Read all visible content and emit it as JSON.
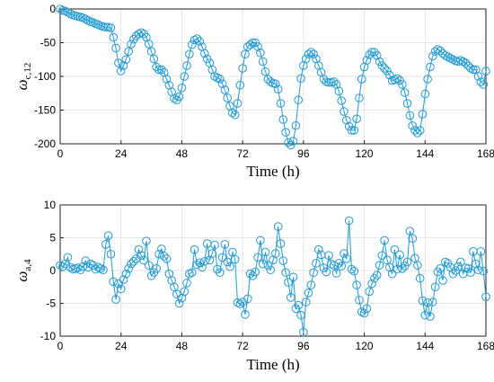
{
  "chart_data": [
    {
      "type": "line",
      "marker": "circle",
      "color": "#1f9ad6",
      "grid": true,
      "xlabel": "Time (h)",
      "ylabel_symbol": "ω",
      "ylabel_subscript": "c,12",
      "xlim": [
        0,
        168
      ],
      "ylim": [
        -200,
        0
      ],
      "xticks": [
        "0",
        "24",
        "48",
        "72",
        "96",
        "120",
        "144",
        "168"
      ],
      "yticks": [
        "0",
        "-50",
        "-100",
        "-150",
        "-200"
      ],
      "x": [
        0,
        1,
        2,
        3,
        4,
        5,
        6,
        7,
        8,
        9,
        10,
        11,
        12,
        13,
        14,
        15,
        16,
        17,
        18,
        19,
        20,
        21,
        22,
        23,
        24,
        25,
        26,
        27,
        28,
        29,
        30,
        31,
        32,
        33,
        34,
        35,
        36,
        37,
        38,
        39,
        40,
        41,
        42,
        43,
        44,
        45,
        46,
        47,
        48,
        49,
        50,
        51,
        52,
        53,
        54,
        55,
        56,
        57,
        58,
        59,
        60,
        61,
        62,
        63,
        64,
        65,
        66,
        67,
        68,
        69,
        70,
        71,
        72,
        73,
        74,
        75,
        76,
        77,
        78,
        79,
        80,
        81,
        82,
        83,
        84,
        85,
        86,
        87,
        88,
        89,
        90,
        91,
        92,
        93,
        94,
        95,
        96,
        97,
        98,
        99,
        100,
        101,
        102,
        103,
        104,
        105,
        106,
        107,
        108,
        109,
        110,
        111,
        112,
        113,
        114,
        115,
        116,
        117,
        118,
        119,
        120,
        121,
        122,
        123,
        124,
        125,
        126,
        127,
        128,
        129,
        130,
        131,
        132,
        133,
        134,
        135,
        136,
        137,
        138,
        139,
        140,
        141,
        142,
        143,
        144,
        145,
        146,
        147,
        148,
        149,
        150,
        151,
        152,
        153,
        154,
        155,
        156,
        157,
        158,
        159,
        160,
        161,
        162,
        163,
        164,
        165,
        166,
        167,
        168
      ],
      "y": [
        0,
        -2,
        -3,
        -5,
        -7,
        -9,
        -10,
        -11,
        -12,
        -13,
        -15,
        -17,
        -19,
        -20,
        -22,
        -23,
        -25,
        -26,
        -27,
        -27,
        -28,
        -42,
        -58,
        -80,
        -92,
        -84,
        -75,
        -63,
        -52,
        -45,
        -40,
        -37,
        -35,
        -37,
        -42,
        -52,
        -63,
        -74,
        -86,
        -90,
        -90,
        -94,
        -104,
        -113,
        -123,
        -133,
        -135,
        -130,
        -117,
        -100,
        -84,
        -67,
        -53,
        -46,
        -44,
        -48,
        -56,
        -66,
        -74,
        -80,
        -90,
        -100,
        -102,
        -104,
        -111,
        -120,
        -132,
        -144,
        -154,
        -157,
        -140,
        -113,
        -88,
        -67,
        -56,
        -53,
        -50,
        -50,
        -56,
        -65,
        -78,
        -93,
        -104,
        -108,
        -110,
        -111,
        -119,
        -140,
        -164,
        -183,
        -198,
        -202,
        -196,
        -173,
        -135,
        -103,
        -84,
        -74,
        -67,
        -64,
        -67,
        -74,
        -84,
        -94,
        -104,
        -108,
        -109,
        -109,
        -108,
        -112,
        -122,
        -136,
        -152,
        -165,
        -174,
        -180,
        -180,
        -163,
        -132,
        -104,
        -86,
        -76,
        -68,
        -64,
        -64,
        -69,
        -78,
        -84,
        -88,
        -92,
        -98,
        -106,
        -105,
        -103,
        -106,
        -112,
        -124,
        -140,
        -158,
        -173,
        -180,
        -184,
        -180,
        -156,
        -126,
        -104,
        -86,
        -70,
        -63,
        -60,
        -62,
        -66,
        -69,
        -71,
        -73,
        -75,
        -77,
        -78,
        -76,
        -78,
        -80,
        -84,
        -88,
        -90,
        -90,
        -100,
        -108,
        -112,
        -92
      ],
      "marker_every": 1
    },
    {
      "type": "line",
      "marker": "circle",
      "color": "#1f9ad6",
      "grid": true,
      "xlabel": "Time (h)",
      "ylabel_symbol": "ω",
      "ylabel_subscript": "a,4",
      "xlim": [
        0,
        168
      ],
      "ylim": [
        -10,
        10
      ],
      "xticks": [
        "0",
        "24",
        "48",
        "72",
        "96",
        "120",
        "144",
        "168"
      ],
      "yticks": [
        "10",
        "5",
        "0",
        "-5",
        "-10"
      ],
      "x": [
        0,
        1,
        2,
        3,
        4,
        5,
        6,
        7,
        8,
        9,
        10,
        11,
        12,
        13,
        14,
        15,
        16,
        17,
        18,
        19,
        20,
        21,
        22,
        23,
        24,
        25,
        26,
        27,
        28,
        29,
        30,
        31,
        32,
        33,
        34,
        35,
        36,
        37,
        38,
        39,
        40,
        41,
        42,
        43,
        44,
        45,
        46,
        47,
        48,
        49,
        50,
        51,
        52,
        53,
        54,
        55,
        56,
        57,
        58,
        59,
        60,
        61,
        62,
        63,
        64,
        65,
        66,
        67,
        68,
        69,
        70,
        71,
        72,
        73,
        74,
        75,
        76,
        77,
        78,
        79,
        80,
        81,
        82,
        83,
        84,
        85,
        86,
        87,
        88,
        89,
        90,
        91,
        92,
        93,
        94,
        95,
        96,
        97,
        98,
        99,
        100,
        101,
        102,
        103,
        104,
        105,
        106,
        107,
        108,
        109,
        110,
        111,
        112,
        113,
        114,
        115,
        116,
        117,
        118,
        119,
        120,
        121,
        122,
        123,
        124,
        125,
        126,
        127,
        128,
        129,
        130,
        131,
        132,
        133,
        134,
        135,
        136,
        137,
        138,
        139,
        140,
        141,
        142,
        143,
        144,
        145,
        146,
        147,
        148,
        149,
        150,
        151,
        152,
        153,
        154,
        155,
        156,
        157,
        158,
        159,
        160,
        161,
        162,
        163,
        164,
        165,
        166,
        167,
        168
      ],
      "y": [
        0.8,
        0.6,
        1.0,
        2.0,
        0.5,
        0.2,
        0.3,
        0.4,
        0.1,
        0.6,
        1.5,
        0.5,
        1.0,
        0.8,
        0.2,
        0.5,
        0.3,
        0.1,
        4.0,
        5.3,
        2.5,
        -1.7,
        -4.4,
        -2.0,
        -2.8,
        -1.4,
        -0.5,
        0.3,
        1.0,
        1.4,
        1.8,
        3.2,
        2.3,
        1.6,
        4.5,
        0.8,
        -0.8,
        -0.3,
        0.3,
        2.5,
        3.3,
        2.2,
        1.8,
        -0.5,
        -1.5,
        -2.5,
        -3.6,
        -5.0,
        -4.2,
        -3.2,
        -1.9,
        -0.5,
        -0.3,
        3.2,
        0.9,
        1.2,
        0.5,
        1.4,
        4.1,
        1.6,
        2.6,
        3.9,
        0.2,
        -0.3,
        2.0,
        4.0,
        1.3,
        0.6,
        2.8,
        1.7,
        -4.9,
        -5.1,
        -4.8,
        -6.7,
        -4.3,
        -0.5,
        -0.8,
        -0.2,
        2.0,
        4.6,
        1.0,
        2.8,
        0.8,
        0.1,
        1.6,
        2.6,
        6.7,
        4.1,
        1.5,
        -0.3,
        -1.8,
        -4.1,
        -1.0,
        -5.8,
        -5.3,
        -6.8,
        -9.4,
        -4.8,
        -3.4,
        -2.2,
        -0.3,
        1.1,
        3.2,
        2.4,
        0.4,
        -0.2,
        2.3,
        1.0,
        0.8,
        -0.4,
        1.1,
        0.7,
        2.6,
        1.8,
        7.6,
        0.2,
        -0.1,
        -2.2,
        -4.5,
        -6.3,
        -6.5,
        -5.8,
        -3.2,
        -2.0,
        -1.2,
        -0.7,
        0.8,
        2.3,
        4.6,
        1.6,
        0.5,
        -0.5,
        3.2,
        0.2,
        2.4,
        0.3,
        0.7,
        1.3,
        6.0,
        4.9,
        1.9,
        0.8,
        -1.2,
        -4.6,
        -6.8,
        -4.9,
        -7.0,
        -4.8,
        -2.5,
        -0.2,
        0.3,
        -1.5,
        1.3,
        1.1,
        0.5,
        -0.5,
        0.0,
        0.6,
        1.3,
        -0.5,
        0.4,
        0.3,
        -0.3,
        2.9,
        1.0,
        0.1,
        2.9,
        -0.1,
        -4.0
      ]
    }
  ]
}
